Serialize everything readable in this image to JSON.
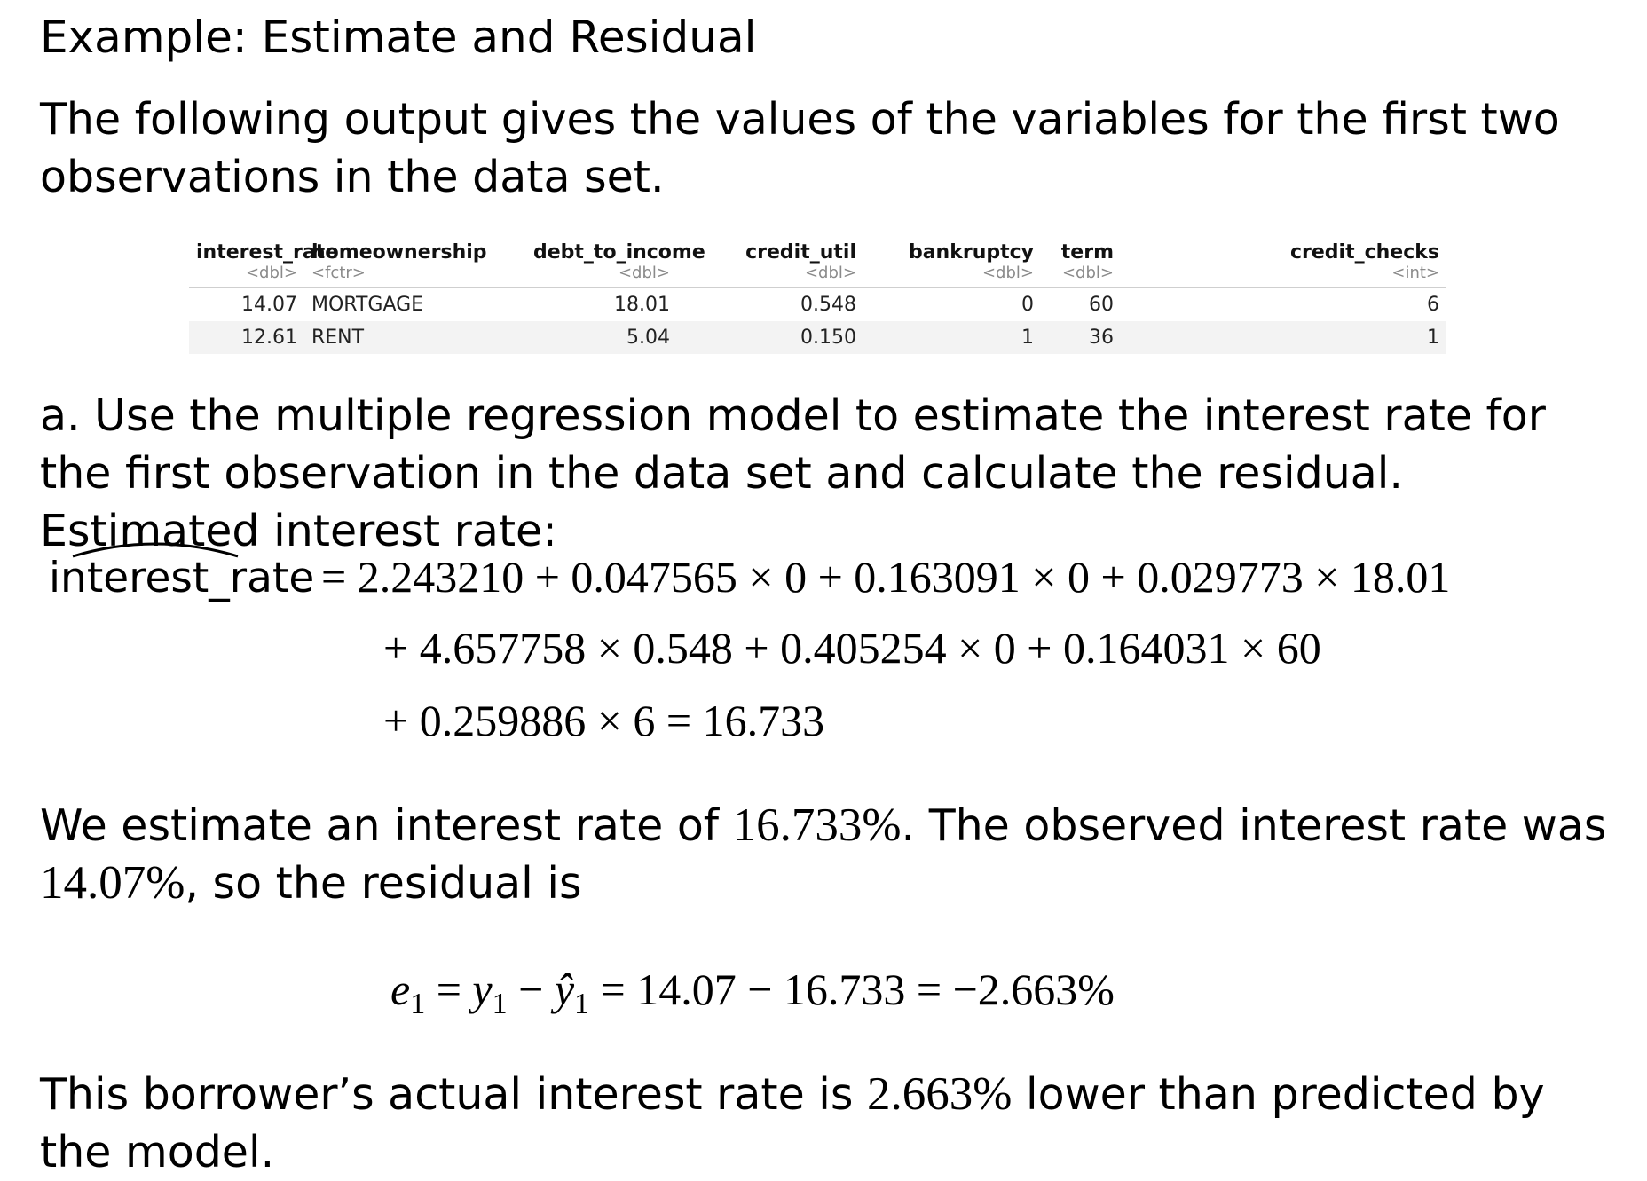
{
  "title": "Example: Estimate and Residual",
  "intro": "The following output gives the values of the variables for the first two observations in the data set.",
  "table": {
    "columns": [
      {
        "name": "interest_rate",
        "type": "<dbl>",
        "align": "right"
      },
      {
        "name": "homeownership",
        "type": "<fctr>",
        "align": "left"
      },
      {
        "name": "debt_to_income",
        "type": "<dbl>",
        "align": "right"
      },
      {
        "name": "credit_util",
        "type": "<dbl>",
        "align": "right"
      },
      {
        "name": "bankruptcy",
        "type": "<dbl>",
        "align": "right"
      },
      {
        "name": "term",
        "type": "<dbl>",
        "align": "right"
      },
      {
        "name": "credit_checks",
        "type": "<int>",
        "align": "right"
      }
    ],
    "rows": [
      [
        "14.07",
        "MORTGAGE",
        "18.01",
        "0.548",
        "0",
        "60",
        "6"
      ],
      [
        "12.61",
        "RENT",
        "5.04",
        "0.150",
        "1",
        "36",
        "1"
      ]
    ]
  },
  "part_a": "a. Use the multiple regression model to estimate the interest rate for the first observation in the data set and calculate the residual. Estimated interest rate:",
  "equation": {
    "lhs": "interest_rate",
    "line1": "= 2.243210 + 0.047565 × 0 + 0.163091 × 0 + 0.029773 × 18.01",
    "line2": "+ 4.657758 × 0.548 + 0.405254 × 0 + 0.164031 × 60",
    "line3": "+ 0.259886 × 6 = 16.733"
  },
  "estimate_text": {
    "before": "We estimate an interest rate of ",
    "estimate_value": "16.733%",
    "middle": ". The observed interest rate was ",
    "observed_value": "14.07%",
    "after": ", so the residual is"
  },
  "residual": {
    "e": "e",
    "y": "y",
    "yhat": "ŷ",
    "sub": "1",
    "rhs": " = 14.07 − 16.733 = −2.663%"
  },
  "conclusion": {
    "before": "This borrower’s actual interest rate is ",
    "value": "2.663%",
    "after": " lower than predicted by the model."
  }
}
